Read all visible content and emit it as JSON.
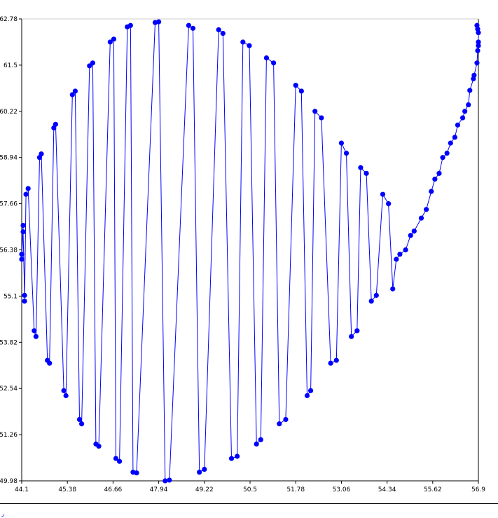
{
  "chart_data": {
    "type": "line",
    "title": "",
    "xlabel": "",
    "ylabel": "",
    "xlim": [
      44.1,
      56.9
    ],
    "ylim": [
      49.98,
      62.78
    ],
    "xticks": [
      "44.1",
      "45.38",
      "46.66",
      "47.94",
      "49.22",
      "50.5",
      "51.78",
      "53.06",
      "54.34",
      "55.62",
      "56.9"
    ],
    "yticks": [
      "49.98",
      "51.26",
      "52.54",
      "53.82",
      "55.1",
      "56.38",
      "57.66",
      "58.94",
      "60.22",
      "61.5",
      "62.78"
    ],
    "grid": false,
    "legend": "none",
    "series": [
      {
        "color": "#0000ff",
        "marker": "circle",
        "x": [
          44.1,
          44.1,
          44.14,
          44.14,
          44.18,
          44.18,
          44.22,
          44.28,
          44.45,
          44.5,
          44.6,
          44.65,
          44.82,
          44.88,
          45.0,
          45.05,
          45.28,
          45.34,
          45.52,
          45.6,
          45.72,
          45.78,
          46.0,
          46.09,
          46.18,
          46.26,
          46.58,
          46.68,
          46.74,
          46.84,
          47.06,
          47.15,
          47.22,
          47.32,
          47.84,
          47.94,
          48.12,
          48.24,
          48.78,
          48.9,
          49.08,
          49.22,
          49.62,
          49.74,
          49.98,
          50.14,
          50.3,
          50.48,
          50.68,
          50.8,
          50.96,
          51.16,
          51.32,
          51.5,
          51.78,
          51.94,
          52.1,
          52.2,
          52.32,
          52.5,
          52.76,
          52.92,
          53.06,
          53.2,
          53.34,
          53.5,
          53.6,
          53.76,
          53.9,
          54.04,
          54.22,
          54.38,
          54.5,
          54.6,
          54.7,
          54.86,
          55.0,
          55.1,
          55.3,
          55.44,
          55.58,
          55.68,
          55.8,
          55.9,
          56.02,
          56.12,
          56.24,
          56.32,
          56.46,
          56.52,
          56.62,
          56.66,
          56.76,
          56.78,
          56.86,
          56.88,
          56.9,
          56.9,
          56.9,
          56.88,
          56.86
        ],
        "y": [
          56.26,
          56.12,
          57.06,
          56.88,
          55.12,
          54.96,
          57.92,
          58.08,
          54.14,
          53.98,
          58.94,
          59.04,
          53.32,
          53.24,
          59.76,
          59.86,
          52.48,
          52.34,
          60.68,
          60.78,
          51.68,
          51.56,
          61.48,
          61.56,
          51.0,
          50.94,
          62.14,
          62.22,
          50.6,
          50.52,
          62.56,
          62.6,
          50.22,
          50.2,
          62.68,
          62.7,
          49.98,
          50.0,
          62.6,
          62.52,
          50.22,
          50.3,
          62.48,
          62.38,
          50.6,
          50.66,
          62.14,
          62.04,
          51.0,
          51.12,
          61.7,
          61.56,
          51.56,
          51.68,
          60.94,
          60.78,
          52.34,
          52.48,
          60.22,
          60.04,
          53.24,
          53.32,
          59.34,
          59.06,
          53.98,
          54.14,
          58.66,
          58.5,
          54.96,
          55.12,
          57.92,
          57.66,
          55.3,
          56.12,
          56.26,
          56.38,
          56.78,
          56.9,
          57.26,
          57.5,
          58.0,
          58.34,
          58.5,
          58.94,
          59.06,
          59.34,
          59.5,
          59.84,
          60.04,
          60.22,
          60.4,
          60.8,
          61.12,
          61.22,
          61.56,
          61.9,
          62.04,
          62.14,
          62.4,
          62.5,
          62.6
        ]
      }
    ]
  }
}
